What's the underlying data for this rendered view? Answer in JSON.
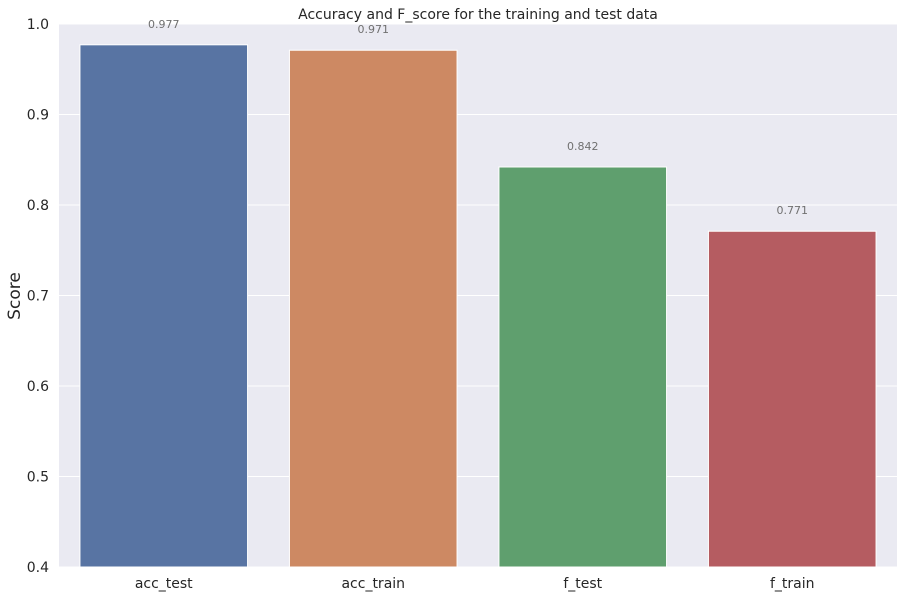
{
  "chart_data": {
    "type": "bar",
    "title": "Accuracy and F_score for the training and test data",
    "xlabel": "",
    "ylabel": "Score",
    "categories": [
      "acc_test",
      "acc_train",
      "f_test",
      "f_train"
    ],
    "values": [
      0.977,
      0.971,
      0.842,
      0.771
    ],
    "data_labels": [
      "0.977",
      "0.971",
      "0.842",
      "0.771"
    ],
    "colors": [
      "#5874a3",
      "#cd8963",
      "#5f9f6e",
      "#b55c61"
    ],
    "ylim": [
      0.4,
      1.0
    ],
    "yticks": [
      0.4,
      0.5,
      0.6,
      0.7,
      0.8,
      0.9,
      1.0
    ],
    "ytick_labels": [
      "0.4",
      "0.5",
      "0.6",
      "0.7",
      "0.8",
      "0.9",
      "1.0"
    ],
    "grid": true,
    "legend": "none",
    "background_color": "#eaeaf2",
    "grid_color": "#ffffff"
  }
}
